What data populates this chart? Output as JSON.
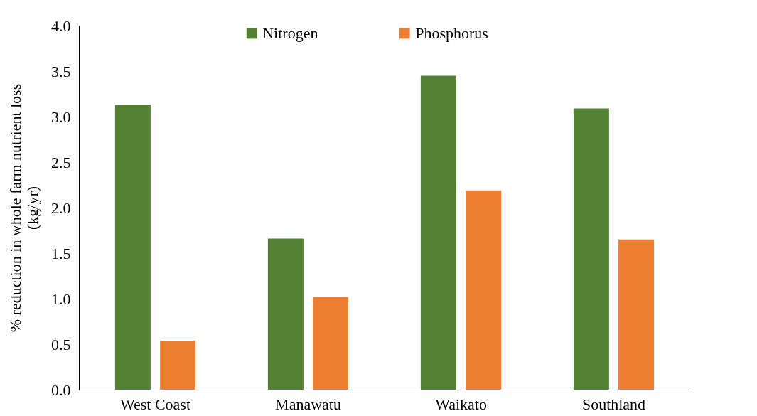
{
  "chart_data": {
    "type": "bar",
    "ylabel": "% reduction in whole farm nutrient loss (kg/yr)",
    "categories": [
      "West Coast",
      "Manawatu",
      "Waikato",
      "Southland"
    ],
    "series": [
      {
        "name": "Nitrogen",
        "color": "#548235",
        "values": [
          3.13,
          1.66,
          3.45,
          3.09
        ]
      },
      {
        "name": "Phosphorus",
        "color": "#ed7d31",
        "values": [
          0.54,
          1.02,
          2.19,
          1.65
        ]
      }
    ],
    "ylim": [
      0,
      4
    ],
    "yticks": [
      {
        "value": 0,
        "label": "0.0"
      },
      {
        "value": 0.5,
        "label": "0.5"
      },
      {
        "value": 1,
        "label": "1.0"
      },
      {
        "value": 1.5,
        "label": "1.5"
      },
      {
        "value": 2,
        "label": "2.0"
      },
      {
        "value": 2.5,
        "label": "2.5"
      },
      {
        "value": 3,
        "label": "3.0"
      },
      {
        "value": 3.5,
        "label": "3.5"
      },
      {
        "value": 4,
        "label": "4.0"
      }
    ],
    "grid": false,
    "legend": "top"
  }
}
